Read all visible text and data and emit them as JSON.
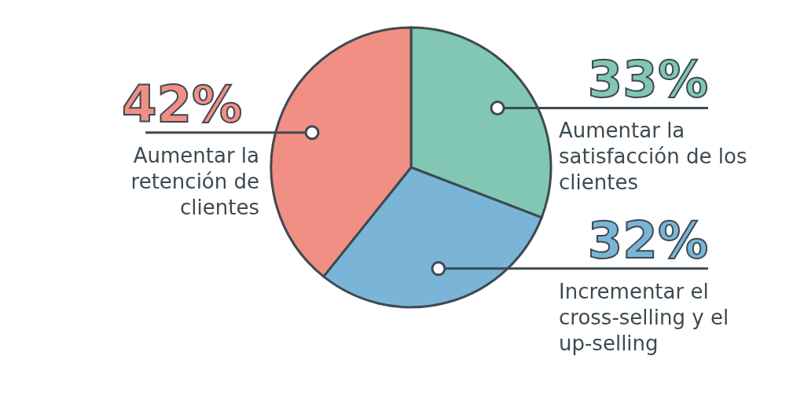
{
  "chart_data": {
    "type": "pie",
    "categories": [
      "Aumentar la satisfacción de los clientes",
      "Incrementar el cross-selling y el up-selling",
      "Aumentar la retención de clientes"
    ],
    "values": [
      33,
      32,
      42
    ],
    "value_labels": [
      "33%",
      "32%",
      "42%"
    ],
    "colors": [
      "#82c7b4",
      "#7ab5d8",
      "#f28f84"
    ],
    "legend": false
  }
}
